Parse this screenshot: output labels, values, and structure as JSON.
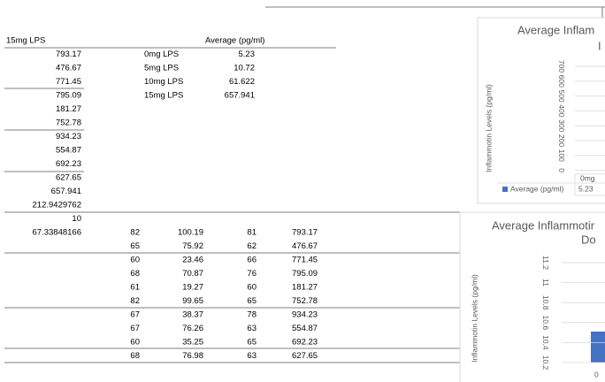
{
  "sheet": {
    "col_a": [
      "15mg LPS",
      793.17,
      476.67,
      771.45,
      795.09,
      181.27,
      752.78,
      934.23,
      554.87,
      692.23,
      627.65,
      657.941,
      212.9429762,
      10,
      67.33848166
    ],
    "summary": {
      "header": "Average (pg/ml)",
      "rows": [
        [
          "0mg LPS",
          5.23
        ],
        [
          "5mg LPS",
          10.72
        ],
        [
          "10mg LPS",
          61.622
        ],
        [
          "15mg LPS",
          657.941
        ]
      ]
    },
    "lower_table": [
      [
        82,
        100.19,
        81,
        793.17
      ],
      [
        65,
        75.92,
        62,
        476.67
      ],
      [
        60,
        23.46,
        66,
        771.45
      ],
      [
        68,
        70.87,
        76,
        795.09
      ],
      [
        61,
        19.27,
        60,
        181.27
      ],
      [
        82,
        99.65,
        65,
        752.78
      ],
      [
        67,
        38.37,
        78,
        934.23
      ],
      [
        67,
        76.26,
        63,
        554.87
      ],
      [
        60,
        35.25,
        65,
        692.23
      ],
      [
        68,
        76.98,
        63,
        627.65
      ]
    ]
  },
  "chart_1": {
    "title": [
      "Average Inflam",
      "I"
    ],
    "y_label": "Inflammotin Levels (pg/ml)",
    "yticks": [
      700,
      600,
      500,
      400,
      300,
      200,
      100,
      0
    ],
    "category": "0mg",
    "legend": "Average (pg/ml)",
    "table_value": 5.23
  },
  "chart_2": {
    "title": [
      "Average Inflammotir",
      "Do"
    ],
    "y_label": "Inflammotin Levels (pg/ml)",
    "yticks": [
      11.2,
      11,
      10.8,
      10.6,
      10.4,
      10.2
    ],
    "category": "0"
  }
}
